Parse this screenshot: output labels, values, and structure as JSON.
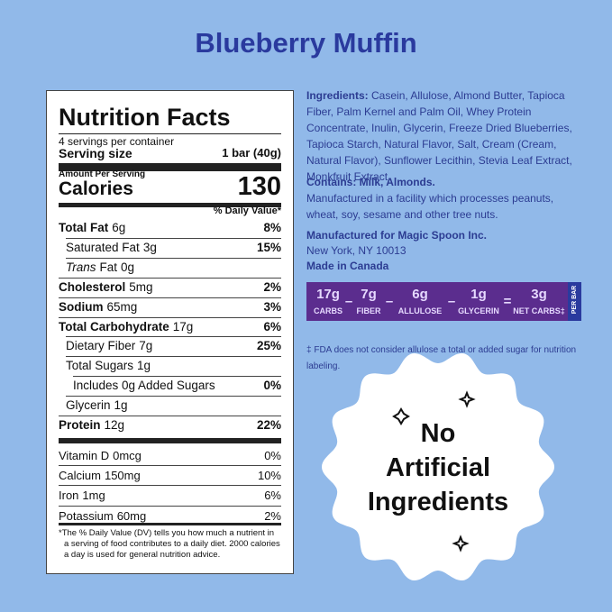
{
  "title": "Blueberry Muffin",
  "nutrition": {
    "heading": "Nutrition Facts",
    "servings": "4 servings per container",
    "serving_size_label": "Serving size",
    "serving_size": "1 bar (40g)",
    "amount_per_serving": "Amount Per Serving",
    "calories_label": "Calories",
    "calories": "130",
    "dv_header": "% Daily Value*",
    "rows": [
      {
        "label": "Total Fat",
        "amount": "6g",
        "dv": "8%"
      },
      {
        "label": "Saturated Fat",
        "amount": "3g",
        "dv": "15%"
      },
      {
        "prefix": "Trans",
        "label": "Fat",
        "amount": "0g"
      },
      {
        "label": "Cholesterol",
        "amount": "5mg",
        "dv": "2%"
      },
      {
        "label": "Sodium",
        "amount": "65mg",
        "dv": "3%"
      },
      {
        "label": "Total Carbohydrate",
        "amount": "17g",
        "dv": "6%"
      },
      {
        "label": "Dietary Fiber",
        "amount": "7g",
        "dv": "25%"
      },
      {
        "label": "Total Sugars",
        "amount": "1g"
      },
      {
        "label": "Includes 0g Added Sugars",
        "dv": "0%"
      },
      {
        "label": "Glycerin",
        "amount": "1g"
      },
      {
        "label": "Protein",
        "amount": "12g",
        "dv": "22%"
      }
    ],
    "vitamins": [
      {
        "label": "Vitamin D",
        "amount": "0mcg",
        "dv": "0%"
      },
      {
        "label": "Calcium",
        "amount": "150mg",
        "dv": "10%"
      },
      {
        "label": "Iron",
        "amount": "1mg",
        "dv": "6%"
      },
      {
        "label": "Potassium",
        "amount": "60mg",
        "dv": "2%"
      }
    ],
    "footnote": "*The % Daily Value (DV) tells you how much a nutrient in a serving of food contributes to a daily diet. 2000 calories a day is used for general nutrition advice."
  },
  "info": {
    "ingredients_label": "Ingredients:",
    "ingredients": "Casein, Allulose, Almond Butter, Tapioca Fiber, Palm Kernel and Palm Oil, Whey Protein Concentrate, Inulin, Glycerin, Freeze Dried Blueberries, Tapioca Starch, Natural Flavor, Salt, Cream (Cream, Natural Flavor), Sunflower Lecithin, Stevia Leaf Extract, Monkfruit Extract.",
    "contains": "Contains: Milk, Almonds.",
    "facility": "Manufactured in a facility which processes peanuts, wheat, soy, sesame and other tree nuts.",
    "manufacturer": "Manufactured for Magic Spoon Inc.",
    "address": "New York, NY 10013",
    "origin": "Made in Canada"
  },
  "carb_bar": {
    "items": [
      {
        "amount": "17g",
        "label": "CARBS"
      },
      {
        "amount": "7g",
        "label": "FIBER"
      },
      {
        "amount": "6g",
        "label": "ALLULOSE"
      },
      {
        "amount": "1g",
        "label": "GLYCERIN"
      },
      {
        "amount": "3g",
        "label": "NET CARBS‡"
      }
    ],
    "operators": [
      "–",
      "–",
      "–",
      "="
    ],
    "per": "PER BAR"
  },
  "fda_note": "‡ FDA does not consider allulose a total or added sugar for nutrition labeling.",
  "badge": [
    "No",
    "Artificial",
    "Ingredients"
  ]
}
